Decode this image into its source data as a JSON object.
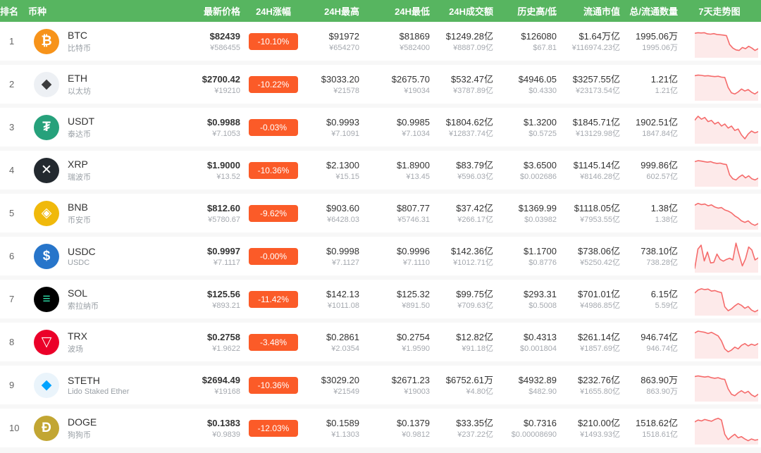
{
  "colors": {
    "header_bg": "#57b560",
    "badge_bg": "#fb5b28",
    "spark_line": "#f56b6b",
    "spark_fill": "#fdeaea"
  },
  "columns": [
    "排名",
    "币种",
    "最新价格",
    "24H涨幅",
    "24H最高",
    "24H最低",
    "24H成交额",
    "历史高/低",
    "流通市值",
    "总/流通数量",
    "7天走势图"
  ],
  "chart_data": {
    "type": "line",
    "note": "7-day mini trend sparklines per coin, values normalized 0-100 (relative price level)",
    "series_key": "spark"
  },
  "rows": [
    {
      "rank": "1",
      "symbol": "BTC",
      "name": "比特币",
      "icon": {
        "label": "btc-icon",
        "glyph": "₿",
        "bg": "#f7931a",
        "fg": "#ffffff"
      },
      "price_usd": "$82439",
      "price_cny": "¥586455",
      "change": "-10.10%",
      "high_usd": "$91972",
      "high_cny": "¥654270",
      "low_usd": "$81869",
      "low_cny": "¥582400",
      "vol_usd": "$1249.28亿",
      "vol_cny": "¥8887.09亿",
      "hist_high": "$126080",
      "hist_low": "$67.81",
      "mcap_usd": "$1.64万亿",
      "mcap_cny": "¥116974.23亿",
      "supply_total": "1995.06万",
      "supply_circ": "1995.06万",
      "spark": [
        78,
        80,
        79,
        80,
        76,
        75,
        77,
        74,
        73,
        72,
        70,
        40,
        28,
        22,
        20,
        30,
        26,
        34,
        28,
        20,
        26
      ]
    },
    {
      "rank": "2",
      "symbol": "ETH",
      "name": "以太坊",
      "icon": {
        "label": "eth-icon",
        "glyph": "◆",
        "bg": "#edf0f4",
        "fg": "#3c3c3d"
      },
      "price_usd": "$2700.42",
      "price_cny": "¥19210",
      "change": "-10.22%",
      "high_usd": "$3033.20",
      "high_cny": "¥21578",
      "low_usd": "$2675.70",
      "low_cny": "¥19034",
      "vol_usd": "$532.47亿",
      "vol_cny": "¥3787.89亿",
      "hist_high": "$4946.05",
      "hist_low": "$0.4330",
      "mcap_usd": "$3257.55亿",
      "mcap_cny": "¥23173.54亿",
      "supply_total": "1.21亿",
      "supply_circ": "1.21亿",
      "spark": [
        80,
        82,
        81,
        79,
        80,
        78,
        77,
        78,
        75,
        74,
        40,
        22,
        18,
        25,
        35,
        28,
        33,
        24,
        18,
        26
      ]
    },
    {
      "rank": "3",
      "symbol": "USDT",
      "name": "泰达币",
      "icon": {
        "label": "usdt-icon",
        "glyph": "₮",
        "bg": "#26a17b",
        "fg": "#ffffff"
      },
      "price_usd": "$0.9988",
      "price_cny": "¥7.1053",
      "change": "-0.03%",
      "high_usd": "$0.9993",
      "high_cny": "¥7.1091",
      "low_usd": "$0.9985",
      "low_cny": "¥7.1034",
      "vol_usd": "$1804.62亿",
      "vol_cny": "¥12837.74亿",
      "hist_high": "$1.3200",
      "hist_low": "$0.5725",
      "mcap_usd": "$1845.71亿",
      "mcap_cny": "¥13129.98亿",
      "supply_total": "1902.51亿",
      "supply_circ": "1847.84亿",
      "spark": [
        75,
        88,
        78,
        84,
        70,
        74,
        62,
        68,
        55,
        62,
        48,
        55,
        40,
        45,
        25,
        12,
        28,
        38,
        32,
        36
      ]
    },
    {
      "rank": "4",
      "symbol": "XRP",
      "name": "瑞波币",
      "icon": {
        "label": "xrp-icon",
        "glyph": "✕",
        "bg": "#23292f",
        "fg": "#ffffff"
      },
      "price_usd": "$1.9000",
      "price_cny": "¥13.52",
      "change": "-10.36%",
      "high_usd": "$2.1300",
      "high_cny": "¥15.15",
      "low_usd": "$1.8900",
      "low_cny": "¥13.45",
      "vol_usd": "$83.79亿",
      "vol_cny": "¥596.03亿",
      "hist_high": "$3.6500",
      "hist_low": "$0.002686",
      "mcap_usd": "$1145.14亿",
      "mcap_cny": "¥8146.28亿",
      "supply_total": "999.86亿",
      "supply_circ": "602.57亿",
      "spark": [
        80,
        83,
        82,
        80,
        78,
        80,
        76,
        74,
        75,
        72,
        70,
        35,
        22,
        18,
        28,
        35,
        25,
        32,
        22,
        18,
        24
      ]
    },
    {
      "rank": "5",
      "symbol": "BNB",
      "name": "币安币",
      "icon": {
        "label": "bnb-icon",
        "glyph": "◈",
        "bg": "#f0b90b",
        "fg": "#ffffff"
      },
      "price_usd": "$812.60",
      "price_cny": "¥5780.67",
      "change": "-9.62%",
      "high_usd": "$903.60",
      "high_cny": "¥6428.03",
      "low_usd": "$807.77",
      "low_cny": "¥5746.31",
      "vol_usd": "$37.42亿",
      "vol_cny": "¥266.17亿",
      "hist_high": "$1369.99",
      "hist_low": "$0.03982",
      "mcap_usd": "$1118.05亿",
      "mcap_cny": "¥7953.55亿",
      "supply_total": "1.38亿",
      "supply_circ": "1.38亿",
      "spark": [
        78,
        84,
        80,
        82,
        76,
        79,
        72,
        68,
        70,
        62,
        58,
        52,
        42,
        35,
        25,
        20,
        25,
        15,
        10,
        16
      ]
    },
    {
      "rank": "6",
      "symbol": "USDC",
      "name": "USDC",
      "icon": {
        "label": "usdc-icon",
        "glyph": "$",
        "bg": "#2775ca",
        "fg": "#ffffff"
      },
      "price_usd": "$0.9997",
      "price_cny": "¥7.1117",
      "change": "-0.00%",
      "high_usd": "$0.9998",
      "high_cny": "¥7.1127",
      "low_usd": "$0.9996",
      "low_cny": "¥7.1110",
      "vol_usd": "$142.36亿",
      "vol_cny": "¥1012.71亿",
      "hist_high": "$1.1700",
      "hist_low": "$0.8776",
      "mcap_usd": "$738.06亿",
      "mcap_cny": "¥5250.42亿",
      "supply_total": "738.10亿",
      "supply_circ": "738.28亿",
      "spark": [
        10,
        75,
        88,
        35,
        65,
        28,
        30,
        58,
        40,
        34,
        40,
        44,
        38,
        95,
        55,
        18,
        42,
        82,
        72,
        38,
        45
      ]
    },
    {
      "rank": "7",
      "symbol": "SOL",
      "name": "索拉纳币",
      "icon": {
        "label": "sol-icon",
        "glyph": "≡",
        "bg": "#000000",
        "fg": "#2fe3ac"
      },
      "price_usd": "$125.56",
      "price_cny": "¥893.21",
      "change": "-11.42%",
      "high_usd": "$142.13",
      "high_cny": "¥1011.08",
      "low_usd": "$125.32",
      "low_cny": "¥891.50",
      "vol_usd": "$99.75亿",
      "vol_cny": "¥709.63亿",
      "hist_high": "$293.31",
      "hist_low": "$0.5008",
      "mcap_usd": "$701.01亿",
      "mcap_cny": "¥4986.85亿",
      "supply_total": "6.15亿",
      "supply_circ": "5.59亿",
      "spark": [
        72,
        82,
        86,
        83,
        85,
        78,
        80,
        76,
        73,
        25,
        12,
        18,
        28,
        36,
        30,
        20,
        26,
        14,
        8,
        14
      ]
    },
    {
      "rank": "8",
      "symbol": "TRX",
      "name": "波场",
      "icon": {
        "label": "trx-icon",
        "glyph": "▽",
        "bg": "#eb0029",
        "fg": "#ffffff"
      },
      "price_usd": "$0.2758",
      "price_cny": "¥1.9622",
      "change": "-3.48%",
      "high_usd": "$0.2861",
      "high_cny": "¥2.0354",
      "low_usd": "$0.2754",
      "low_cny": "¥1.9590",
      "vol_usd": "$12.82亿",
      "vol_cny": "¥91.18亿",
      "hist_high": "$0.4313",
      "hist_low": "$0.001804",
      "mcap_usd": "$261.14亿",
      "mcap_cny": "¥1857.69亿",
      "supply_total": "946.74亿",
      "supply_circ": "946.74亿",
      "spark": [
        82,
        88,
        86,
        84,
        80,
        84,
        78,
        72,
        55,
        28,
        18,
        24,
        34,
        28,
        40,
        46,
        38,
        44,
        40,
        46
      ]
    },
    {
      "rank": "9",
      "symbol": "STETH",
      "name": "Lido Staked Ether",
      "icon": {
        "label": "steth-icon",
        "glyph": "◆",
        "bg": "#eaf4fb",
        "fg": "#00a3ff"
      },
      "price_usd": "$2694.49",
      "price_cny": "¥19168",
      "change": "-10.36%",
      "high_usd": "$3029.20",
      "high_cny": "¥21549",
      "low_usd": "$2671.23",
      "low_cny": "¥19003",
      "vol_usd": "$6752.61万",
      "vol_cny": "¥4.80亿",
      "hist_high": "$4932.89",
      "hist_low": "$482.90",
      "mcap_usd": "$232.76亿",
      "mcap_cny": "¥1655.80亿",
      "supply_total": "863.90万",
      "supply_circ": "863.90万",
      "spark": [
        80,
        82,
        80,
        78,
        80,
        76,
        74,
        76,
        72,
        70,
        38,
        20,
        15,
        25,
        32,
        24,
        30,
        18,
        12,
        20
      ]
    },
    {
      "rank": "10",
      "symbol": "DOGE",
      "name": "狗狗币",
      "icon": {
        "label": "doge-icon",
        "glyph": "Ð",
        "bg": "#c2a633",
        "fg": "#ffffff"
      },
      "price_usd": "$0.1383",
      "price_cny": "¥0.9839",
      "change": "-12.03%",
      "high_usd": "$0.1589",
      "high_cny": "¥1.1303",
      "low_usd": "$0.1379",
      "low_cny": "¥0.9812",
      "vol_usd": "$33.35亿",
      "vol_cny": "¥237.22亿",
      "hist_high": "$0.7316",
      "hist_low": "$0.00008690",
      "mcap_usd": "$210.00亿",
      "mcap_cny": "¥1493.93亿",
      "supply_total": "1518.62亿",
      "supply_circ": "1518.61亿",
      "spark": [
        72,
        78,
        75,
        80,
        77,
        74,
        80,
        84,
        78,
        30,
        12,
        22,
        30,
        18,
        22,
        14,
        8,
        14,
        10,
        12
      ]
    }
  ]
}
